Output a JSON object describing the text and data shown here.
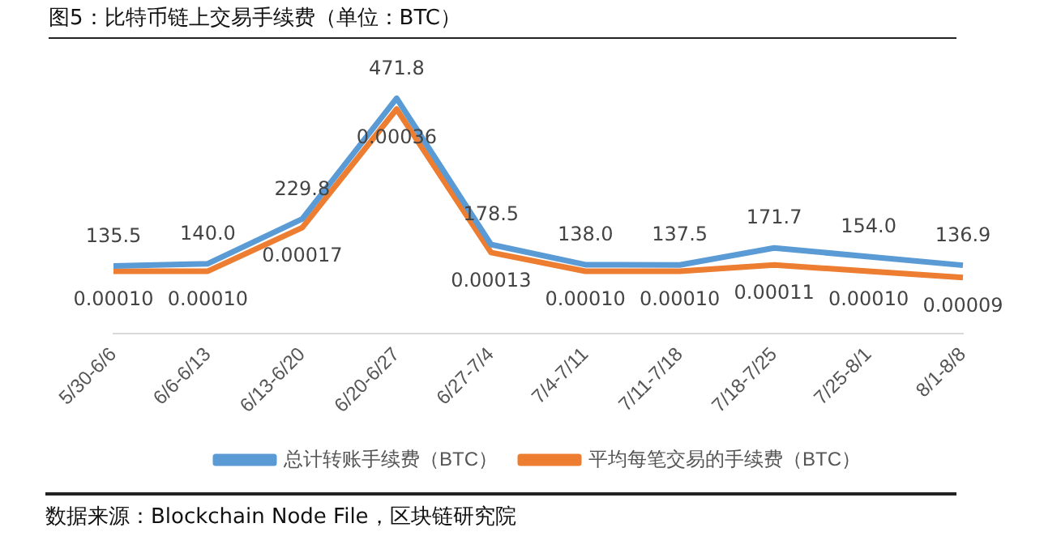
{
  "chart_data": {
    "type": "line",
    "title": "图5：比特币链上交易手续费（单位：BTC）",
    "categories": [
      "5/30-6/6",
      "6/6-6/13",
      "6/13-6/20",
      "6/20-6/27",
      "6/27-7/4",
      "7/4-7/11",
      "7/11-7/18",
      "7/18-7/25",
      "7/25-8/1",
      "8/1-8/8"
    ],
    "series": [
      {
        "name": "总计转账手续费（BTC）",
        "color": "#5b9bd5",
        "values": [
          135.5,
          140.0,
          229.8,
          471.8,
          178.5,
          138.0,
          137.5,
          171.7,
          154.0,
          136.9
        ],
        "value_labels": [
          "135.5",
          "140.0",
          "229.8",
          "471.8",
          "178.5",
          "138.0",
          "137.5",
          "171.7",
          "154.0",
          "136.9"
        ]
      },
      {
        "name": "平均每笔交易的手续费（BTC）",
        "color": "#ed7d31",
        "axis": "y2",
        "values": [
          0.0001,
          0.0001,
          0.00017,
          0.00036,
          0.00013,
          0.0001,
          0.0001,
          0.00011,
          0.0001,
          9e-05
        ],
        "value_labels": [
          "0.00010",
          "0.00010",
          "0.00017",
          "0.00036",
          "0.00013",
          "0.00010",
          "0.00010",
          "0.00011",
          "0.00010",
          "0.00009"
        ]
      }
    ],
    "legend": "bottom",
    "tick_labels": "x",
    "grid": false,
    "marker": "none",
    "line_style": "solid",
    "annotations": [
      "数据来源：Blockchain Node File，区块链研究院"
    ]
  }
}
